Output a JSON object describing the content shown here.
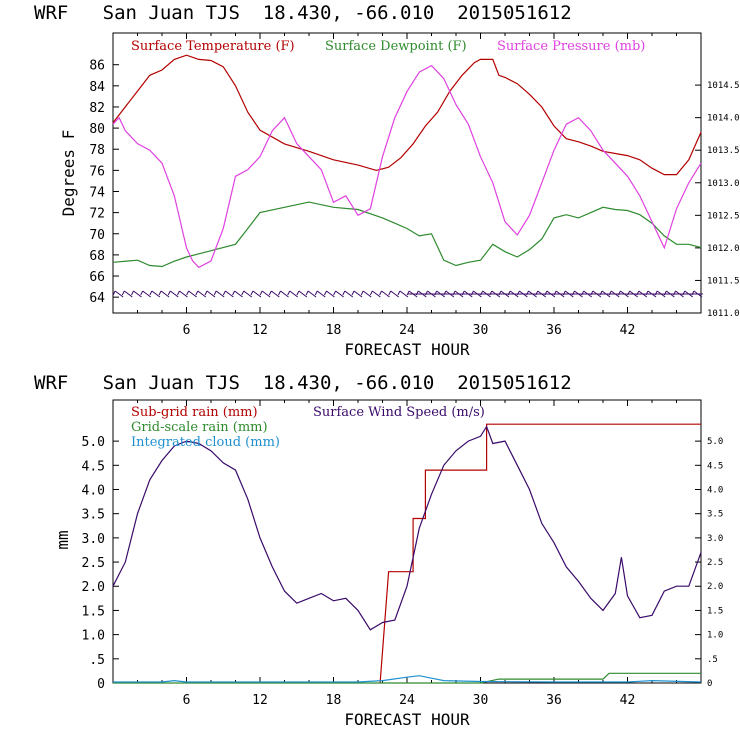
{
  "chart_data": [
    {
      "type": "line",
      "title": "WRF   San Juan TJS  18.430, -66.010  2015051612",
      "xlabel": "FORECAST HOUR",
      "ylabel": "Degrees F",
      "xlim": [
        0,
        48
      ],
      "ylim": [
        62.5,
        89
      ],
      "y2lim": [
        1011.0,
        1015.3
      ],
      "x_ticks": [
        6,
        12,
        18,
        24,
        30,
        36,
        42
      ],
      "y_ticks": [
        64,
        66,
        68,
        70,
        72,
        74,
        76,
        78,
        80,
        82,
        84,
        86
      ],
      "y2_ticks": [
        "1011.0",
        "1011.5",
        "1012.0",
        "1012.5",
        "1013.0",
        "1013.5",
        "1014.0",
        "1014.5"
      ],
      "grid": false,
      "legend_position": "top",
      "series": [
        {
          "name": "Surface Temperature (F)",
          "color": "#b30000",
          "axis": "left",
          "x": [
            0,
            2,
            3,
            4,
            5,
            6,
            7,
            8,
            9,
            10,
            11,
            12,
            14,
            16,
            18,
            20,
            21.5,
            22.5,
            23.5,
            24.5,
            25.5,
            26.5,
            27.5,
            28.5,
            29.5,
            30,
            31,
            31.5,
            32,
            33,
            34,
            35,
            36,
            37,
            38,
            39,
            40,
            41,
            42,
            43,
            44,
            45,
            46,
            47,
            48
          ],
          "values": [
            80.5,
            83.5,
            85,
            85.5,
            86.5,
            86.9,
            86.5,
            86.4,
            85.8,
            84.0,
            81.5,
            79.8,
            78.5,
            77.8,
            77.0,
            76.5,
            76.0,
            76.3,
            77.2,
            78.5,
            80.2,
            81.5,
            83.5,
            85.0,
            86.2,
            86.5,
            86.5,
            85.0,
            84.8,
            84.2,
            83.2,
            82.0,
            80.2,
            79.0,
            78.7,
            78.3,
            77.8,
            77.6,
            77.4,
            77.0,
            76.2,
            75.6,
            75.6,
            77.0,
            79.6
          ]
        },
        {
          "name": "Surface Dewpoint (F)",
          "color": "#2e8b2e",
          "axis": "left",
          "x": [
            0,
            2,
            3,
            4,
            5,
            6,
            8,
            10,
            11,
            12,
            14,
            16,
            18,
            20,
            22,
            23,
            24,
            25,
            26,
            27,
            28,
            29,
            30,
            31,
            32,
            33,
            34,
            35,
            36,
            37,
            38,
            39,
            40,
            41,
            42,
            43,
            44,
            45,
            46,
            47,
            48
          ],
          "values": [
            67.3,
            67.5,
            67.0,
            66.9,
            67.4,
            67.8,
            68.4,
            69.0,
            70.5,
            72.0,
            72.5,
            73.0,
            72.5,
            72.3,
            71.5,
            71.0,
            70.5,
            69.8,
            70.0,
            67.5,
            67.0,
            67.3,
            67.5,
            69.0,
            68.3,
            67.8,
            68.5,
            69.5,
            71.5,
            71.8,
            71.5,
            72.0,
            72.5,
            72.3,
            72.2,
            71.8,
            71.0,
            69.8,
            69.0,
            69.0,
            68.7
          ]
        },
        {
          "name": "Surface Pressure (mb)",
          "color": "#e040e0",
          "axis": "right",
          "x": [
            0,
            0.5,
            1,
            2,
            3,
            4,
            5,
            6,
            6.5,
            7,
            8,
            9,
            10,
            11,
            12,
            13,
            14,
            15,
            16,
            17,
            18,
            19,
            20,
            21,
            22,
            23,
            24,
            25,
            26,
            27,
            28,
            29,
            30,
            31,
            32,
            33,
            34,
            35,
            36,
            37,
            38,
            39,
            40,
            41,
            42,
            43,
            44,
            45,
            46,
            47,
            48
          ],
          "values": [
            1013.9,
            1014.0,
            1013.8,
            1013.6,
            1013.5,
            1013.3,
            1012.8,
            1012.0,
            1011.8,
            1011.7,
            1011.8,
            1012.3,
            1013.1,
            1013.2,
            1013.4,
            1013.8,
            1014.0,
            1013.6,
            1013.4,
            1013.2,
            1012.7,
            1012.8,
            1012.5,
            1012.6,
            1013.4,
            1014.0,
            1014.4,
            1014.7,
            1014.8,
            1014.6,
            1014.2,
            1013.9,
            1013.4,
            1013.0,
            1012.4,
            1012.2,
            1012.5,
            1013.0,
            1013.5,
            1013.9,
            1014.0,
            1013.8,
            1013.5,
            1013.3,
            1013.1,
            1012.8,
            1012.4,
            1012.0,
            1012.6,
            1013.0,
            1013.3
          ]
        }
      ],
      "wind_barbs": "row of wind barbs along the bottom of the panel"
    },
    {
      "type": "line",
      "title": "WRF   San Juan TJS  18.430, -66.010  2015051612",
      "xlabel": "FORECAST HOUR",
      "ylabel": "mm",
      "xlim": [
        0,
        48
      ],
      "ylim": [
        0,
        5.85
      ],
      "y2lim": [
        0,
        5.85
      ],
      "x_ticks": [
        6,
        12,
        18,
        24,
        30,
        36,
        42
      ],
      "y_ticks": [
        0,
        0.5,
        1.0,
        1.5,
        2.0,
        2.5,
        3.0,
        3.5,
        4.0,
        4.5,
        5.0
      ],
      "y_tick_labels": [
        "0",
        ".5",
        "1.0",
        "1.5",
        "2.0",
        "2.5",
        "3.0",
        "3.5",
        "4.0",
        "4.5",
        "5.0"
      ],
      "y2_tick_labels": [
        "0",
        ".5",
        "1.0",
        "1.5",
        "2.0",
        "2.5",
        "3.0",
        "3.5",
        "4.0",
        "4.5",
        "5.0"
      ],
      "grid": false,
      "legend_position": "top-left",
      "series": [
        {
          "name": "Sub-grid rain (mm)",
          "color": "#b30000",
          "axis": "left",
          "x": [
            21.8,
            22.5,
            22.5,
            24.5,
            24.5,
            25.5,
            25.5,
            27,
            27,
            28.5,
            28.5,
            29.5,
            29.5,
            30.5,
            30.5,
            31,
            31,
            48
          ],
          "values": [
            0,
            2.3,
            2.3,
            2.3,
            3.4,
            3.4,
            4.4,
            4.4,
            4.4,
            4.4,
            4.4,
            4.4,
            4.4,
            4.4,
            5.35,
            5.35,
            5.35,
            5.35
          ]
        },
        {
          "name": "Grid-scale rain (mm)",
          "color": "#2e8b2e",
          "axis": "left",
          "x": [
            0,
            22,
            30,
            31.5,
            40,
            40.5,
            48
          ],
          "values": [
            0,
            0,
            0,
            0.08,
            0.08,
            0.2,
            0.2
          ]
        },
        {
          "name": "Integrated cloud (mm)",
          "color": "#1e90d0",
          "axis": "left",
          "x": [
            0,
            4,
            5,
            6,
            12,
            20,
            22,
            24,
            25,
            26,
            27,
            30,
            36,
            42,
            44,
            48
          ],
          "values": [
            0.02,
            0.02,
            0.05,
            0.02,
            0.02,
            0.02,
            0.05,
            0.12,
            0.15,
            0.1,
            0.05,
            0.03,
            0.02,
            0.02,
            0.05,
            0.02
          ]
        },
        {
          "name": "Surface Wind Speed (m/s)",
          "color": "#3a0a6a",
          "axis": "right",
          "x": [
            0,
            1,
            2,
            3,
            4,
            5,
            6,
            7,
            8,
            9,
            10,
            11,
            12,
            13,
            14,
            15,
            16,
            17,
            18,
            19,
            20,
            21,
            22,
            23,
            24,
            25,
            26,
            27,
            28,
            29,
            30,
            30.5,
            31,
            32,
            33,
            34,
            35,
            36,
            37,
            38,
            39,
            40,
            41,
            41.5,
            42,
            43,
            44,
            45,
            46,
            47,
            48
          ],
          "values": [
            2.0,
            2.5,
            3.5,
            4.2,
            4.6,
            4.9,
            5.0,
            4.95,
            4.8,
            4.55,
            4.4,
            3.8,
            3.0,
            2.4,
            1.9,
            1.65,
            1.75,
            1.85,
            1.7,
            1.75,
            1.5,
            1.1,
            1.25,
            1.3,
            2.0,
            3.2,
            3.9,
            4.5,
            4.8,
            5.0,
            5.1,
            5.3,
            4.95,
            5.0,
            4.5,
            4.0,
            3.3,
            2.9,
            2.4,
            2.1,
            1.75,
            1.5,
            1.85,
            2.6,
            1.8,
            1.35,
            1.4,
            1.9,
            2.0,
            2.0,
            2.7
          ]
        }
      ]
    }
  ]
}
